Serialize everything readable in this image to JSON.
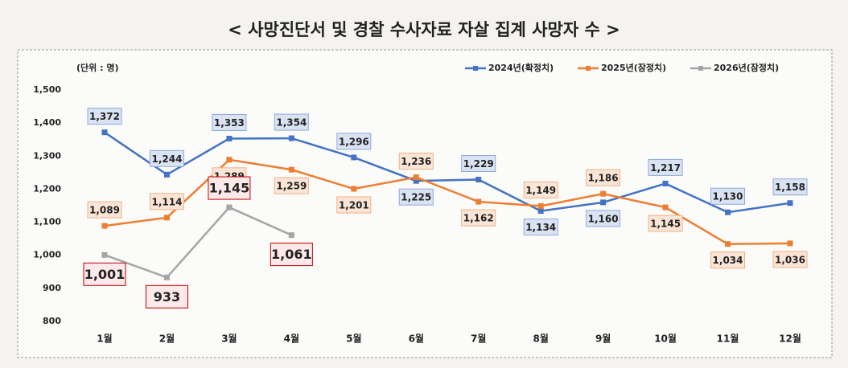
{
  "chart_data": {
    "type": "line",
    "title": "< 사망진단서 및 경찰 수사자료 자살 집계 사망자 수 >",
    "unit_label": "(단위 : 명)",
    "categories": [
      "1월",
      "2월",
      "3월",
      "4월",
      "5월",
      "6월",
      "7월",
      "8월",
      "9월",
      "10월",
      "11월",
      "12월"
    ],
    "series": [
      {
        "name": "2024년(확정치)",
        "color": "#4472c4",
        "values": [
          1372,
          1244,
          1353,
          1354,
          1296,
          1225,
          1229,
          1134,
          1160,
          1217,
          1130,
          1158
        ],
        "value_labels": [
          "1,372",
          "1,244",
          "1,353",
          "1,354",
          "1,296",
          "1,225",
          "1,229",
          "1,134",
          "1,160",
          "1,217",
          "1,130",
          "1,158"
        ]
      },
      {
        "name": "2025년(잠정치)",
        "color": "#ed7d31",
        "values": [
          1089,
          1114,
          1289,
          1259,
          1201,
          1236,
          1162,
          1149,
          1186,
          1145,
          1034,
          1036
        ],
        "value_labels": [
          "1,089",
          "1,114",
          "1,289",
          "1,259",
          "1,201",
          "1,236",
          "1,162",
          "1,149",
          "1,186",
          "1,145",
          "1,034",
          "1,036"
        ]
      },
      {
        "name": "2026년(잠정치)",
        "color": "#a5a5a5",
        "values": [
          1001,
          933,
          1145,
          1061,
          null,
          null,
          null,
          null,
          null,
          null,
          null,
          null
        ],
        "value_labels": [
          "1,001",
          "933",
          "1,145",
          "1,061",
          null,
          null,
          null,
          null,
          null,
          null,
          null,
          null
        ]
      }
    ],
    "ylim": [
      800,
      1500
    ],
    "yticks": [
      800,
      900,
      {
        "value": 1000,
        "label": "1,000"
      },
      {
        "value": 1100,
        "label": "1,100"
      },
      {
        "value": 1200,
        "label": "1,200"
      },
      {
        "value": 1300,
        "label": "1,300"
      },
      {
        "value": 1400,
        "label": "1,400"
      },
      {
        "value": 1500,
        "label": "1,500"
      }
    ],
    "legend": "top-right"
  }
}
